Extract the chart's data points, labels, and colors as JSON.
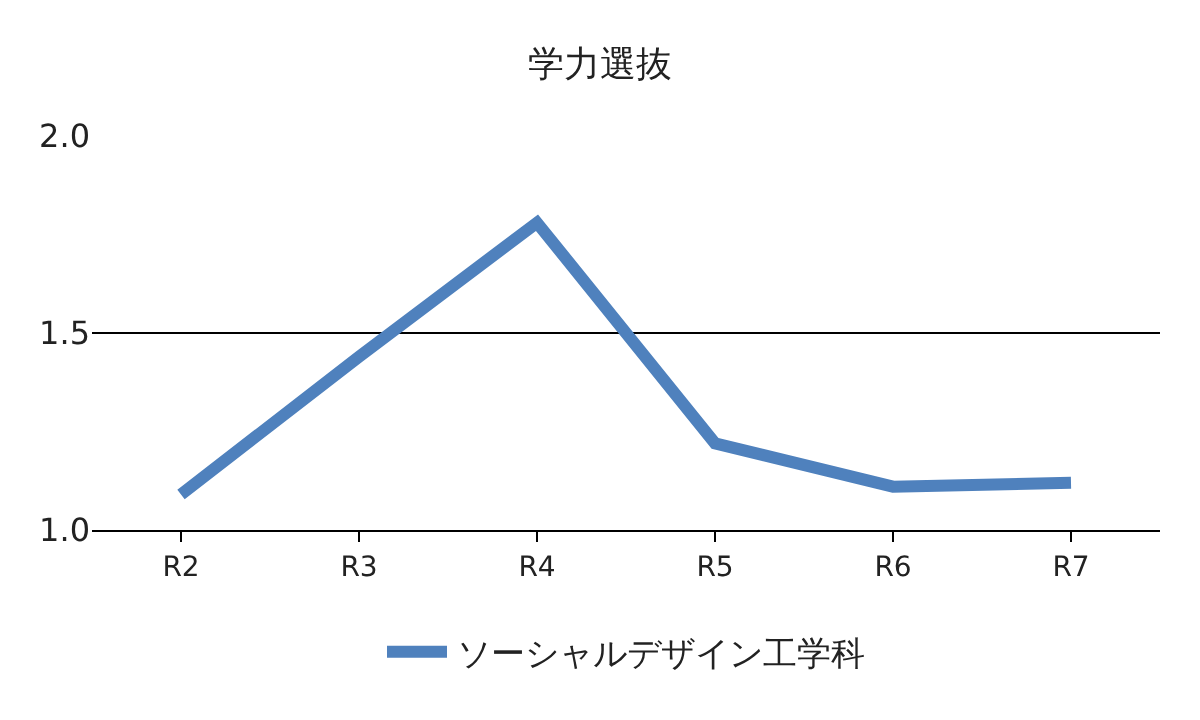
{
  "chart_data": {
    "type": "line",
    "title": "学力選抜",
    "categories": [
      "R2",
      "R3",
      "R4",
      "R5",
      "R6",
      "R7"
    ],
    "series": [
      {
        "name": "ソーシャルデザイン工学科",
        "color": "#4f81bd",
        "values": [
          1.09,
          1.44,
          1.78,
          1.22,
          1.11,
          1.12
        ]
      }
    ],
    "ylim": [
      1.0,
      2.0
    ],
    "yticks": [
      {
        "value": 1.0,
        "label": "1.0"
      },
      {
        "value": 1.5,
        "label": "1.5"
      },
      {
        "value": 2.0,
        "label": "2.0"
      }
    ],
    "grid": "y",
    "legend": "bottom",
    "marker": "none",
    "line_style": "solid"
  }
}
